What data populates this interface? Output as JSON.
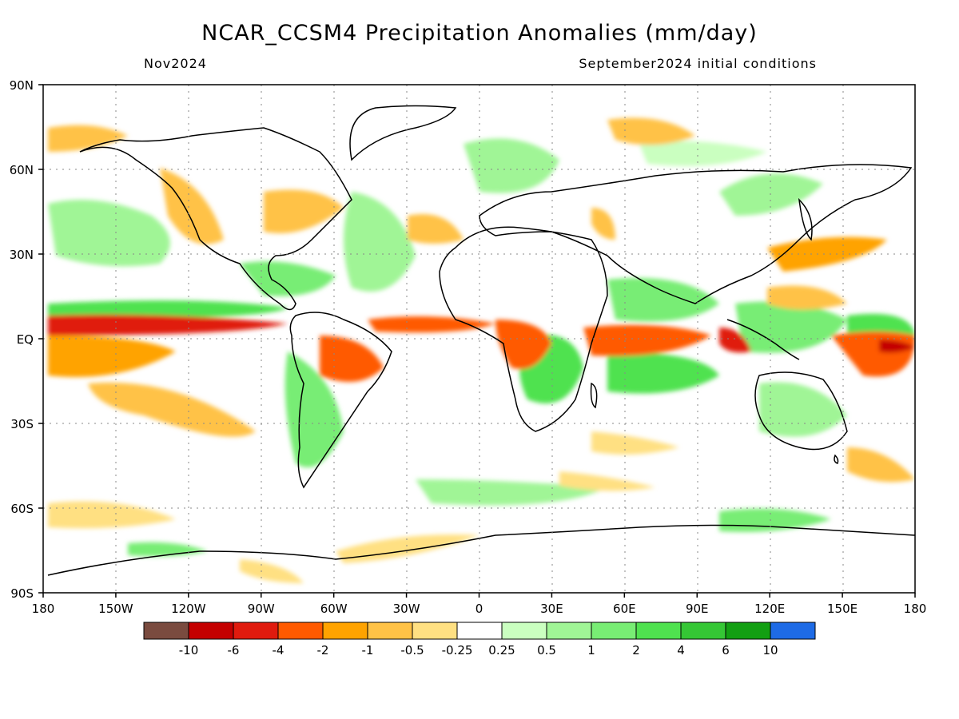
{
  "title": "NCAR_CCSM4 Precipitation Anomalies (mm/day)",
  "subtitle_left": "Nov2024",
  "subtitle_right": "September2024 initial conditions",
  "lat_labels": [
    "90N",
    "60N",
    "30N",
    "EQ",
    "30S",
    "60S",
    "90S"
  ],
  "lon_labels": [
    "180",
    "150W",
    "120W",
    "90W",
    "60W",
    "30W",
    "0",
    "30E",
    "60E",
    "90E",
    "120E",
    "150E",
    "180"
  ],
  "colorbar": {
    "colors": [
      "#7a4b3f",
      "#c40000",
      "#e01b0e",
      "#ff5a00",
      "#ffa300",
      "#ffc246",
      "#ffe082",
      "#ffffff",
      "#caffc0",
      "#a0f596",
      "#78ed74",
      "#4fe24f",
      "#35c735",
      "#129f12",
      "#1e6be6"
    ],
    "labels": [
      "-10",
      "-6",
      "-4",
      "-2",
      "-1",
      "-0.5",
      "-0.25",
      "0.25",
      "0.5",
      "1",
      "2",
      "4",
      "6",
      "10"
    ]
  }
}
